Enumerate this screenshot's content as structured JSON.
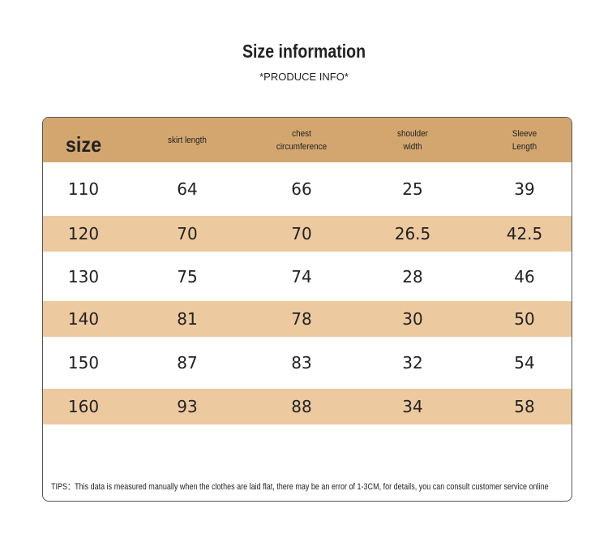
{
  "header": {
    "title": "Size information",
    "subtitle": "*PRODUCE INFO*"
  },
  "table": {
    "columns": [
      [
        "size"
      ],
      [
        "skirt length"
      ],
      [
        "chest",
        "circumference"
      ],
      [
        "shoulder",
        "width"
      ],
      [
        "Sleeve",
        "Length"
      ]
    ],
    "rows": [
      [
        110,
        64,
        66,
        25,
        39
      ],
      [
        120,
        70,
        70,
        26.5,
        42.5
      ],
      [
        130,
        75,
        74,
        28,
        46
      ],
      [
        140,
        81,
        78,
        30,
        50
      ],
      [
        150,
        87,
        83,
        32,
        54
      ],
      [
        160,
        93,
        88,
        34,
        58
      ]
    ]
  },
  "footer": {
    "tips": "TIPS：This data is measured manually when the clothes are laid flat, there may be an error of 1-3CM, for details, you can consult customer service online"
  }
}
